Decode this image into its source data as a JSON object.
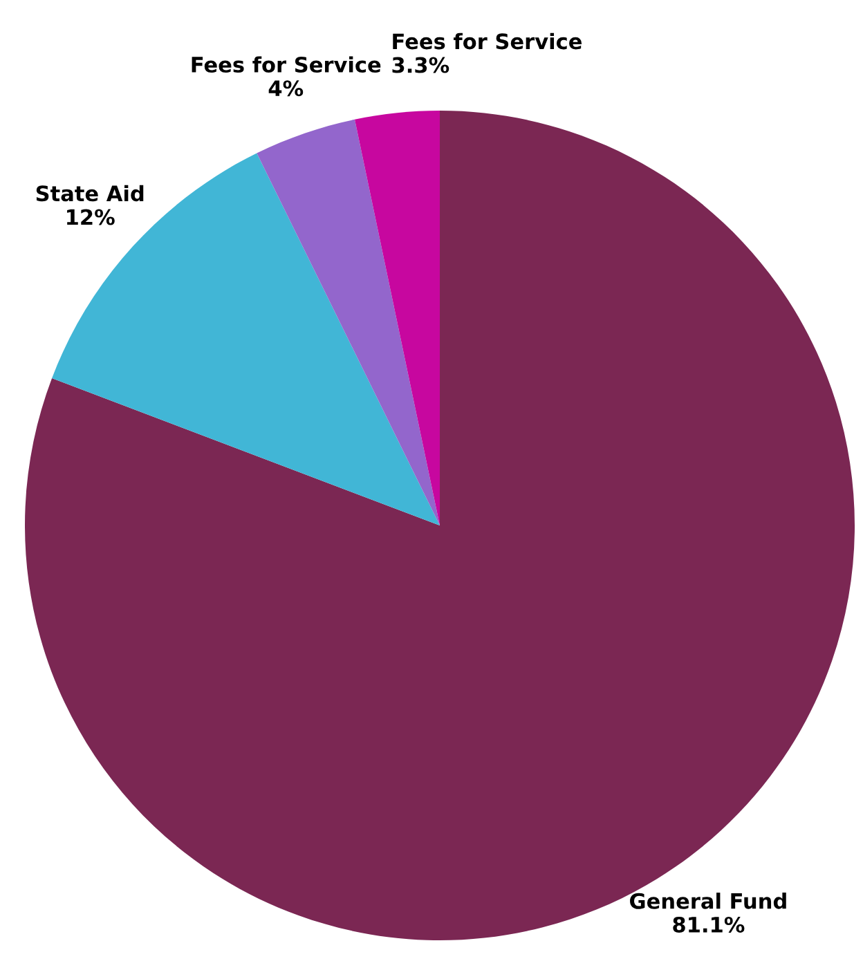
{
  "chart_data": {
    "type": "pie",
    "categories": [
      "General Fund",
      "State Aid",
      "Fees for Service",
      "Fees for Service"
    ],
    "values": [
      81.1,
      12,
      4,
      3.3
    ],
    "value_labels": [
      "81.1%",
      "12%",
      "4%",
      "3.3%"
    ],
    "colors": [
      "#7b2753",
      "#41b6d6",
      "#9366cc",
      "#c7079f"
    ]
  }
}
